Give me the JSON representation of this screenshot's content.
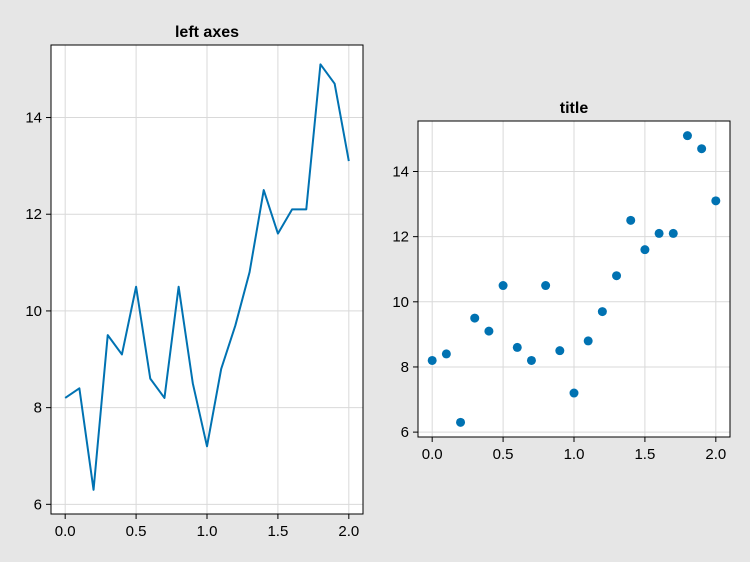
{
  "chart_data": [
    {
      "type": "line",
      "title": "left axes",
      "xlabel": "",
      "ylabel": "",
      "color": "#0072b2",
      "xlim": [
        -0.1,
        2.1
      ],
      "ylim": [
        5.8,
        15.5
      ],
      "xticks": [
        0.0,
        0.5,
        1.0,
        1.5,
        2.0
      ],
      "xticklabels": [
        "0.0",
        "0.5",
        "1.0",
        "1.5",
        "2.0"
      ],
      "yticks": [
        6,
        8,
        10,
        12,
        14
      ],
      "yticklabels": [
        "6",
        "8",
        "10",
        "12",
        "14"
      ],
      "grid": true,
      "x": [
        0.0,
        0.1,
        0.2,
        0.3,
        0.4,
        0.5,
        0.6,
        0.7,
        0.8,
        0.9,
        1.0,
        1.1,
        1.2,
        1.3,
        1.4,
        1.5,
        1.6,
        1.7,
        1.8,
        1.9,
        2.0
      ],
      "y": [
        8.2,
        8.4,
        6.3,
        9.5,
        9.1,
        10.5,
        8.6,
        8.2,
        10.5,
        8.5,
        7.2,
        8.8,
        9.7,
        10.8,
        12.5,
        11.6,
        12.1,
        12.1,
        15.1,
        14.7,
        13.1
      ]
    },
    {
      "type": "scatter",
      "title": "title",
      "xlabel": "",
      "ylabel": "",
      "color": "#0072b2",
      "xlim": [
        -0.1,
        2.1
      ],
      "ylim": [
        5.85,
        15.55
      ],
      "xticks": [
        0.0,
        0.5,
        1.0,
        1.5,
        2.0
      ],
      "xticklabels": [
        "0.0",
        "0.5",
        "1.0",
        "1.5",
        "2.0"
      ],
      "yticks": [
        6,
        8,
        10,
        12,
        14
      ],
      "yticklabels": [
        "6",
        "8",
        "10",
        "12",
        "14"
      ],
      "grid": true,
      "x": [
        0.0,
        0.1,
        0.2,
        0.3,
        0.4,
        0.5,
        0.6,
        0.7,
        0.8,
        0.9,
        1.0,
        1.1,
        1.2,
        1.3,
        1.4,
        1.5,
        1.6,
        1.7,
        1.8,
        1.9,
        2.0
      ],
      "y": [
        8.2,
        8.4,
        6.3,
        9.5,
        9.1,
        10.5,
        8.6,
        8.2,
        10.5,
        8.5,
        7.2,
        8.8,
        9.7,
        10.8,
        12.5,
        11.6,
        12.1,
        12.1,
        15.1,
        14.7,
        13.1
      ]
    }
  ]
}
